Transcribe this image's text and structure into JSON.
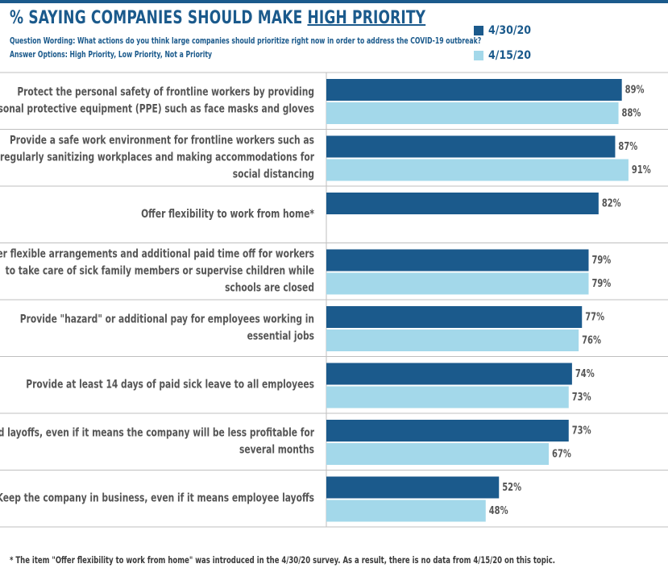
{
  "header": {
    "title_prefix": "% SAYING COMPANIES SHOULD MAKE ",
    "title_highlight": "HIGH PRIORITY",
    "question": "Question Wording: What actions do you think large companies  should prioritize right now in order to address the COVID-19 outbreak?",
    "answers": "Answer Options: High Priority, Low Priority, Not a Priority"
  },
  "footnote": "* The item \"Offer flexibility to work from home\" was introduced in the 4/30/20 survey. As a result, there is no data from 4/15/20 on this topic.",
  "colors": {
    "series1": "#1b5a8c",
    "series2": "#a3d8ea",
    "text": "#555555",
    "grid": "#bfbfbf"
  },
  "chart_data": {
    "type": "bar",
    "orientation": "horizontal",
    "xlim": [
      0,
      100
    ],
    "value_suffix": "%",
    "legend": "top-right",
    "series": [
      {
        "name": "4/30/20",
        "values": [
          89,
          87,
          82,
          79,
          77,
          74,
          73,
          52
        ]
      },
      {
        "name": "4/15/20",
        "values": [
          88,
          91,
          null,
          79,
          76,
          73,
          67,
          48
        ]
      }
    ],
    "categories": [
      [
        "Protect the personal safety of frontline workers by providing",
        "personal protective equipment (PPE) such as face masks and gloves"
      ],
      [
        "Provide a safe work environment for frontline workers such as",
        "regularly sanitizing workplaces and making accommodations for",
        "social distancing"
      ],
      [
        "Offer flexibility to work from home*"
      ],
      [
        "Offer flexible arrangements and additional paid time off for workers",
        "to take care of sick family members or supervise children while",
        "schools are closed"
      ],
      [
        "Provide \"hazard\" or additional pay for employees working in",
        "essential jobs"
      ],
      [
        "Provide at least 14 days of paid sick leave to all employees"
      ],
      [
        "Avoid layoffs, even if it means the company will be less profitable for",
        "several months"
      ],
      [
        "Keep the company in business, even if it means employee layoffs"
      ]
    ]
  }
}
